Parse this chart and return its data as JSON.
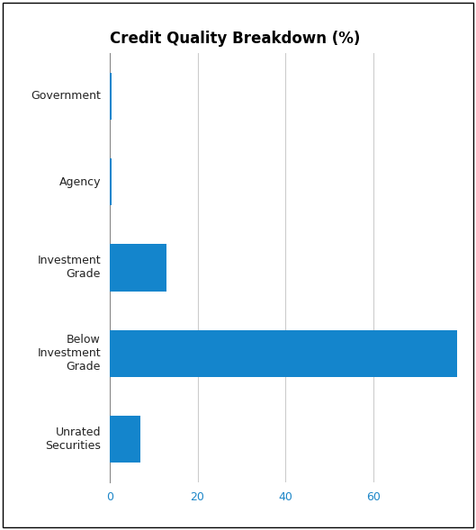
{
  "title": "Credit Quality Breakdown (%)",
  "categories": [
    "Government",
    "Agency",
    "Investment\nGrade",
    "Below\nInvestment\nGrade",
    "Unrated\nSecurities"
  ],
  "values": [
    0.5,
    0.5,
    13.0,
    79.0,
    7.0
  ],
  "bar_color": "#1485CC",
  "xlim": [
    0,
    80
  ],
  "xticks": [
    0,
    20,
    40,
    60
  ],
  "background_color": "#ffffff",
  "border_color": "#000000",
  "title_fontsize": 12,
  "title_fontweight": "bold",
  "tick_color": "#1C86C8",
  "grid_color": "#cccccc",
  "bar_height": 0.55,
  "figsize": [
    5.29,
    5.89
  ],
  "dpi": 100
}
